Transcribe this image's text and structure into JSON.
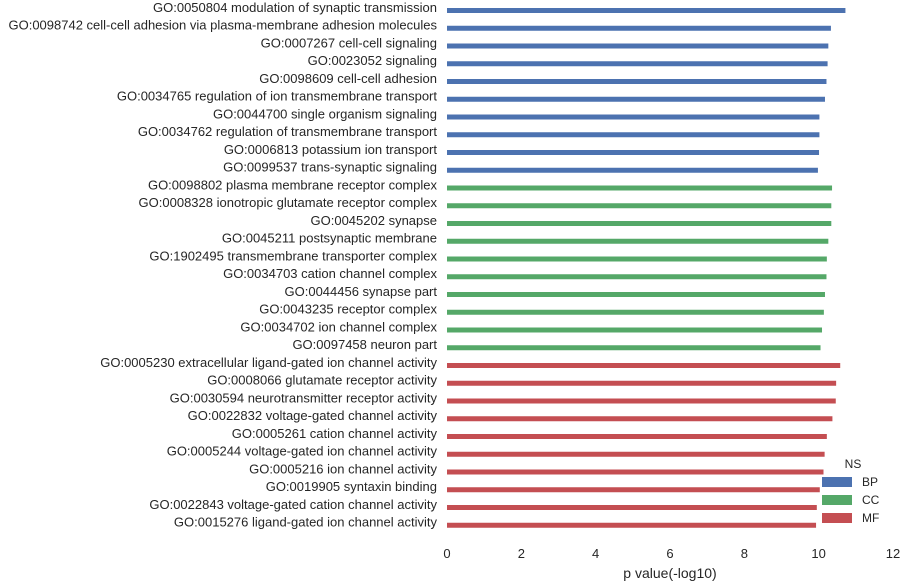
{
  "chart_data": {
    "type": "bar",
    "orientation": "horizontal",
    "xlabel": "p value(-log10)",
    "ylabel": "",
    "xlim": [
      0,
      12
    ],
    "xticks": [
      0,
      2,
      4,
      6,
      8,
      10,
      12
    ],
    "grid": false,
    "legend": {
      "title": "NS",
      "placement": "bottom-right",
      "entries": [
        "BP",
        "CC",
        "MF"
      ]
    },
    "colors": {
      "BP": "#4c72b0",
      "CC": "#55a868",
      "MF": "#c44e52"
    },
    "categories": [
      "GO:0050804 modulation of synaptic transmission",
      "GO:0098742 cell-cell adhesion via plasma-membrane adhesion molecules",
      "GO:0007267 cell-cell signaling",
      "GO:0023052 signaling",
      "GO:0098609 cell-cell adhesion",
      "GO:0034765 regulation of ion transmembrane transport",
      "GO:0044700 single organism signaling",
      "GO:0034762 regulation of transmembrane transport",
      "GO:0006813 potassium ion transport",
      "GO:0099537 trans-synaptic signaling",
      "GO:0098802 plasma membrane receptor complex",
      "GO:0008328 ionotropic glutamate receptor complex",
      "GO:0045202 synapse",
      "GO:0045211 postsynaptic membrane",
      "GO:1902495 transmembrane transporter complex",
      "GO:0034703 cation channel complex",
      "GO:0044456 synapse part",
      "GO:0043235 receptor complex",
      "GO:0034702 ion channel complex",
      "GO:0097458 neuron part",
      "GO:0005230 extracellular ligand-gated ion channel activity",
      "GO:0008066 glutamate receptor activity",
      "GO:0030594 neurotransmitter receptor activity",
      "GO:0022832 voltage-gated channel activity",
      "GO:0005261 cation channel activity",
      "GO:0005244 voltage-gated ion channel activity",
      "GO:0005216 ion channel activity",
      "GO:0019905 syntaxin binding",
      "GO:0022843 voltage-gated cation channel activity",
      "GO:0015276 ligand-gated ion channel activity"
    ],
    "groups": [
      "BP",
      "BP",
      "BP",
      "BP",
      "BP",
      "BP",
      "BP",
      "BP",
      "BP",
      "BP",
      "CC",
      "CC",
      "CC",
      "CC",
      "CC",
      "CC",
      "CC",
      "CC",
      "CC",
      "CC",
      "MF",
      "MF",
      "MF",
      "MF",
      "MF",
      "MF",
      "MF",
      "MF",
      "MF",
      "MF"
    ],
    "values": [
      10.72,
      10.33,
      10.26,
      10.24,
      10.21,
      10.17,
      10.02,
      10.02,
      10.01,
      9.98,
      10.36,
      10.34,
      10.34,
      10.26,
      10.22,
      10.21,
      10.17,
      10.14,
      10.09,
      10.05,
      10.58,
      10.47,
      10.46,
      10.37,
      10.22,
      10.16,
      10.13,
      10.03,
      9.95,
      9.93
    ]
  }
}
